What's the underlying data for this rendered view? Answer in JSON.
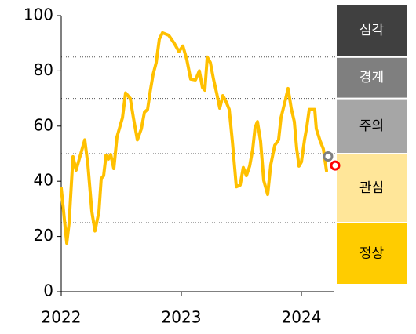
{
  "chart_data": {
    "type": "line",
    "x": [
      2022.0,
      2022.046,
      2022.065,
      2022.098,
      2022.124,
      2022.163,
      2022.196,
      2022.222,
      2022.255,
      2022.281,
      2022.314,
      2022.333,
      2022.353,
      2022.373,
      2022.392,
      2022.412,
      2022.438,
      2022.464,
      2022.49,
      2022.51,
      2022.536,
      2022.575,
      2022.601,
      2022.634,
      2022.667,
      2022.693,
      2022.719,
      2022.739,
      2022.765,
      2022.791,
      2022.817,
      2022.843,
      2022.895,
      2022.941,
      2022.98,
      2023.013,
      2023.046,
      2023.078,
      2023.118,
      2023.15,
      2023.176,
      2023.196,
      2023.216,
      2023.242,
      2023.268,
      2023.294,
      2023.32,
      2023.346,
      2023.373,
      2023.399,
      2023.425,
      2023.458,
      2023.49,
      2023.516,
      2023.542,
      2023.569,
      2023.595,
      2023.614,
      2023.634,
      2023.66,
      2023.686,
      2023.719,
      2023.745,
      2023.778,
      2023.81,
      2023.83,
      2023.863,
      2023.889,
      2023.915,
      2023.941,
      2023.961,
      2023.98,
      2024.0,
      2024.026,
      2024.046,
      2024.065,
      2024.085,
      2024.111,
      2024.124,
      2024.157,
      2024.183,
      2024.209
    ],
    "series": [
      {
        "color": "#ffc000",
        "values": [
          37.5,
          17.6,
          24.7,
          48.9,
          44,
          50,
          55,
          46,
          29,
          22,
          29,
          41,
          42,
          49.4,
          48,
          49.7,
          44.6,
          56,
          60,
          63,
          72,
          70,
          63,
          55,
          59,
          65,
          66,
          72,
          78.7,
          83,
          91.5,
          93.8,
          92.9,
          90,
          87,
          89,
          84,
          77,
          76.7,
          80,
          74,
          73,
          85,
          83,
          77,
          72,
          66.5,
          71,
          68.8,
          66,
          54.5,
          38,
          38.6,
          45,
          42,
          45.5,
          51.7,
          59.4,
          61.6,
          54.5,
          40.3,
          35.2,
          46,
          53,
          55,
          63,
          68.8,
          73.6,
          66.5,
          61.6,
          51.7,
          45.5,
          47,
          55,
          60,
          66,
          66,
          66,
          59,
          54.5,
          51.7,
          43.8
        ]
      }
    ],
    "points": [
      {
        "x": 2024.222,
        "y": 49,
        "color": "#808080"
      },
      {
        "x": 2024.281,
        "y": 45.7,
        "color": "#ff0000"
      }
    ],
    "xlim": [
      2022,
      2024.268
    ],
    "xticks": [
      2022,
      2023,
      2024
    ],
    "ylim": [
      0,
      100
    ],
    "yticks": [
      0,
      20,
      40,
      60,
      80,
      100
    ],
    "levels": [
      {
        "label": "심각",
        "from": 85,
        "to": 100,
        "color": "#404040",
        "text_color": "#ffffff"
      },
      {
        "label": "경계",
        "from": 70,
        "to": 85,
        "color": "#7f7f7f",
        "text_color": "#ffffff"
      },
      {
        "label": "주의",
        "from": 50,
        "to": 70,
        "color": "#a6a6a6",
        "text_color": "#000000"
      },
      {
        "label": "관심",
        "from": 25,
        "to": 50,
        "color": "#ffe699",
        "text_color": "#000000"
      },
      {
        "label": "정상",
        "from": 0,
        "to": 25,
        "color": "#ffcc00",
        "text_color": "#000000"
      }
    ]
  }
}
